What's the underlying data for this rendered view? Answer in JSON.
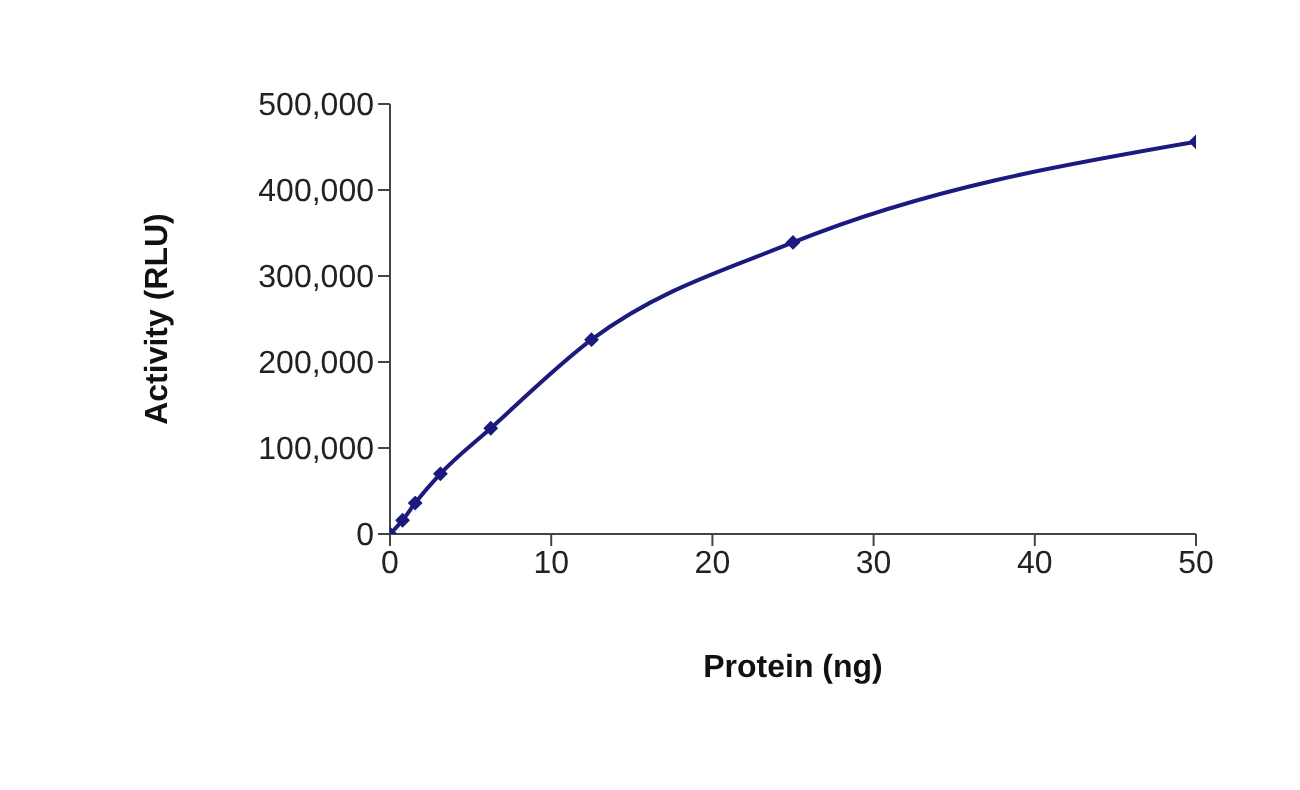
{
  "chart_data": {
    "type": "line",
    "xlabel": "Protein (ng)",
    "ylabel": "Activity (RLU)",
    "x": [
      0,
      0.78,
      1.56,
      3.125,
      6.25,
      12.5,
      25,
      50
    ],
    "series": [
      {
        "color": "#1a1a80",
        "values": [
          0,
          16000,
          36000,
          70000,
          123000,
          226000,
          339000,
          456000
        ]
      }
    ],
    "xlim": [
      0,
      50
    ],
    "xticks": [
      0,
      10,
      20,
      30,
      40,
      50
    ],
    "ylim": [
      0,
      500000
    ],
    "yticks": [
      0,
      {
        "value": 100000,
        "label": "100,000"
      },
      {
        "value": 200000,
        "label": "200,000"
      },
      {
        "value": 300000,
        "label": "300,000"
      },
      {
        "value": 400000,
        "label": "400,000"
      },
      {
        "value": 500000,
        "label": "500,000"
      }
    ],
    "grid": false,
    "legend": false,
    "marker": "diamond",
    "line_style": "solid"
  }
}
